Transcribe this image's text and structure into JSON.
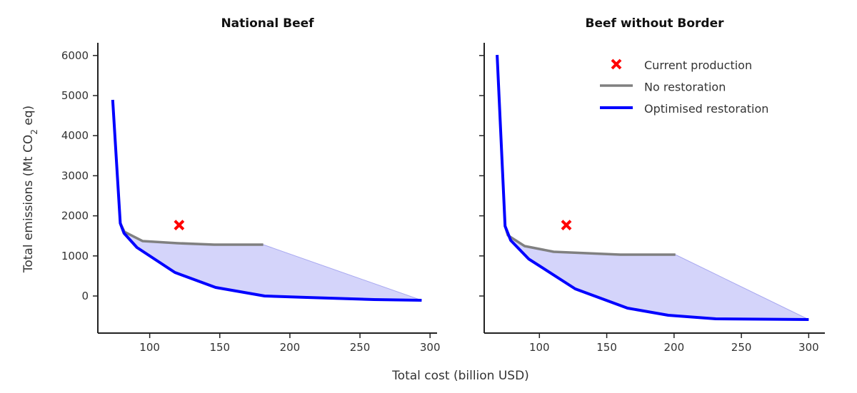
{
  "chart_data": {
    "type": "line",
    "xlabel": "Total cost (billion USD)",
    "ylabel": "Total emissions (Mt CO",
    "ylabel_sub": "2",
    "ylabel_end": " eq)",
    "ylim": [
      -900,
      6300
    ],
    "yticks": [
      0,
      1000,
      2000,
      3000,
      4000,
      5000,
      6000
    ],
    "xticks": [
      100,
      150,
      200,
      250,
      300
    ],
    "legend": {
      "placement": "top-right of second panel",
      "entries": [
        "Current production",
        "No restoration",
        "Optimised restoration"
      ]
    },
    "colors": {
      "current": "#ff0000",
      "none": "#808080",
      "optimised": "#0000ff",
      "fill": "#d4d4fa"
    },
    "panels": [
      {
        "title": "National Beef",
        "xlim": [
          63,
          305
        ],
        "current_production": [
          121,
          1770
        ],
        "series": [
          {
            "name": "No restoration",
            "x": [
              79,
              82,
              95,
              120,
              146,
              181
            ],
            "y": [
              1815,
              1600,
              1370,
              1317,
              1281,
              1281
            ]
          },
          {
            "name": "Optimised restoration",
            "x": [
              73.6,
              79,
              81.7,
              90.9,
              118,
              147,
              182,
              212,
              260,
              294
            ],
            "y": [
              4893,
              1815,
              1566,
              1210,
              587,
              213,
              0,
              -36,
              -89,
              -107
            ]
          }
        ]
      },
      {
        "title": "Beef without Border",
        "xlim": [
          59,
          312
        ],
        "current_production": [
          120,
          1770
        ],
        "series": [
          {
            "name": "No restoration",
            "x": [
              74.5,
              76.6,
              89,
              110.6,
              160,
              201
            ],
            "y": [
              1744,
              1512,
              1246,
              1103,
              1032,
              1032
            ]
          },
          {
            "name": "Optimised restoration",
            "x": [
              68.6,
              74.5,
              78.7,
              92,
              126.6,
              165.4,
              195.7,
              231,
              300
            ],
            "y": [
              6014,
              1744,
              1388,
              925,
              178,
              -302,
              -480,
              -569,
              -587
            ]
          }
        ]
      }
    ]
  }
}
